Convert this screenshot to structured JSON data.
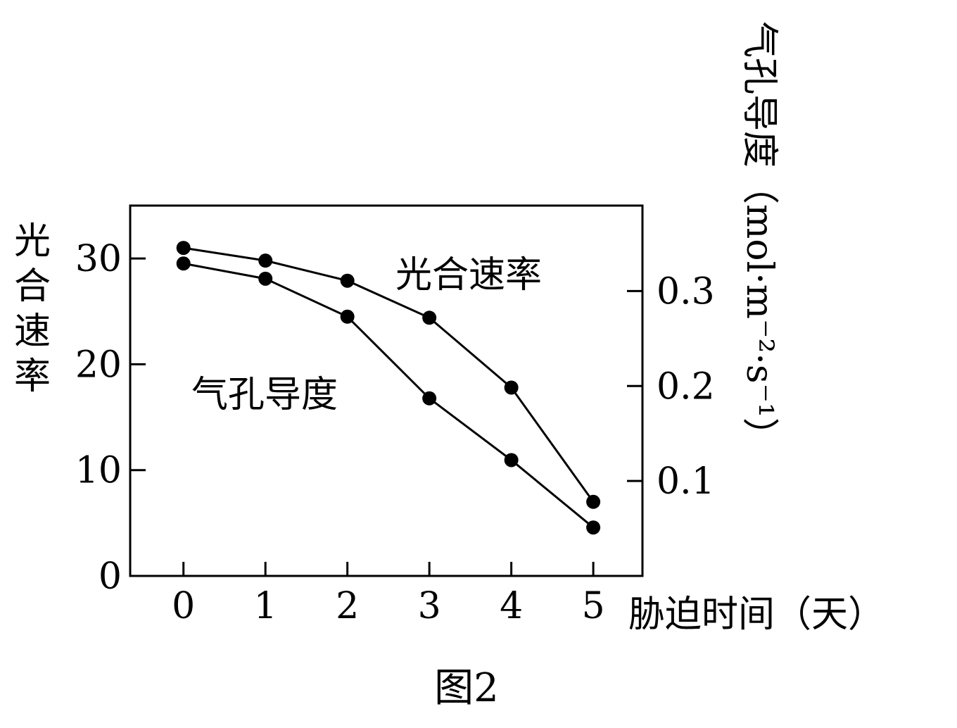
{
  "chart_data": {
    "type": "line",
    "caption": "图2",
    "xlabel": "胁迫时间（天）",
    "ylabel_left": "光合速率",
    "ylabel_right": "气孔导度（mol·m⁻²·s⁻¹）",
    "x": [
      0,
      1,
      2,
      3,
      4,
      5
    ],
    "xlim": [
      -0.65,
      5.6
    ],
    "ylim_left": [
      0,
      35
    ],
    "ylim_right": [
      0,
      0.39
    ],
    "left_ticks": [
      "0",
      "10",
      "20",
      "30"
    ],
    "right_ticks": [
      "0.1",
      "0.2",
      "0.3"
    ],
    "x_ticks": [
      "0",
      "1",
      "2",
      "3",
      "4",
      "5"
    ],
    "series": [
      {
        "name": "光合速率",
        "axis": "left",
        "values": [
          31.0,
          29.8,
          27.9,
          24.4,
          17.8,
          7.0
        ]
      },
      {
        "name": "气孔导度",
        "axis": "right",
        "values": [
          0.329,
          0.313,
          0.273,
          0.187,
          0.122,
          0.051
        ]
      }
    ],
    "grid": false
  }
}
